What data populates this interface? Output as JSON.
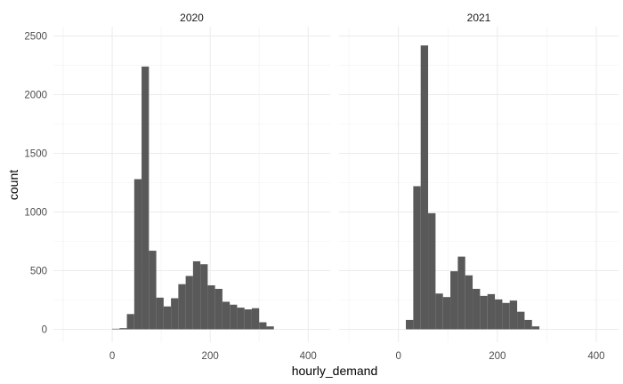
{
  "chart_data": {
    "type": "bar",
    "subtype": "faceted-histogram",
    "xlabel": "hourly_demand",
    "ylabel": "count",
    "xlim": [
      -120,
      445
    ],
    "ylim": [
      -110,
      2580
    ],
    "x_ticks": [
      0,
      200,
      400
    ],
    "y_ticks": [
      0,
      500,
      1000,
      1500,
      2000,
      2500
    ],
    "grid": true,
    "bin_width": 15,
    "bar_color": "#595959",
    "facets": [
      {
        "label": "2020",
        "bins": [
          {
            "x": 7.5,
            "count": 5
          },
          {
            "x": 22.5,
            "count": 10
          },
          {
            "x": 37.5,
            "count": 130
          },
          {
            "x": 52.5,
            "count": 1280
          },
          {
            "x": 67.5,
            "count": 2240
          },
          {
            "x": 82.5,
            "count": 670
          },
          {
            "x": 97.5,
            "count": 270
          },
          {
            "x": 112.5,
            "count": 195
          },
          {
            "x": 127.5,
            "count": 265
          },
          {
            "x": 142.5,
            "count": 385
          },
          {
            "x": 157.5,
            "count": 455
          },
          {
            "x": 172.5,
            "count": 580
          },
          {
            "x": 187.5,
            "count": 555
          },
          {
            "x": 202.5,
            "count": 375
          },
          {
            "x": 217.5,
            "count": 345
          },
          {
            "x": 232.5,
            "count": 235
          },
          {
            "x": 247.5,
            "count": 210
          },
          {
            "x": 262.5,
            "count": 185
          },
          {
            "x": 277.5,
            "count": 170
          },
          {
            "x": 292.5,
            "count": 180
          },
          {
            "x": 307.5,
            "count": 60
          },
          {
            "x": 322.5,
            "count": 25
          }
        ]
      },
      {
        "label": "2021",
        "bins": [
          {
            "x": 22.5,
            "count": 80
          },
          {
            "x": 37.5,
            "count": 1220
          },
          {
            "x": 52.5,
            "count": 2420
          },
          {
            "x": 67.5,
            "count": 990
          },
          {
            "x": 82.5,
            "count": 305
          },
          {
            "x": 97.5,
            "count": 275
          },
          {
            "x": 112.5,
            "count": 495
          },
          {
            "x": 127.5,
            "count": 620
          },
          {
            "x": 142.5,
            "count": 460
          },
          {
            "x": 157.5,
            "count": 345
          },
          {
            "x": 172.5,
            "count": 285
          },
          {
            "x": 187.5,
            "count": 300
          },
          {
            "x": 202.5,
            "count": 255
          },
          {
            "x": 217.5,
            "count": 225
          },
          {
            "x": 232.5,
            "count": 245
          },
          {
            "x": 247.5,
            "count": 150
          },
          {
            "x": 262.5,
            "count": 80
          },
          {
            "x": 277.5,
            "count": 25
          }
        ]
      }
    ]
  }
}
